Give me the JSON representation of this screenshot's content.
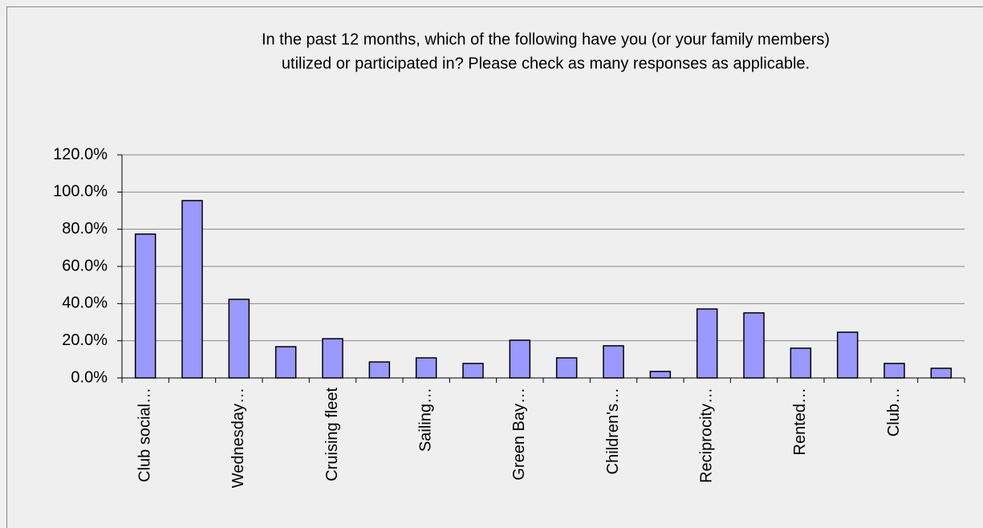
{
  "chart_data": {
    "type": "bar",
    "title": [
      "In the past 12 months, which of the following have you (or your family members)",
      "utilized or participated in? Please check as many responses as applicable."
    ],
    "categories": [
      "Club social…",
      null,
      "Wednesday…",
      null,
      "Cruising fleet",
      null,
      "Sailing…",
      null,
      "Green Bay…",
      null,
      "Children's…",
      null,
      "Reciprocity…",
      null,
      "Rented…",
      null,
      "Club…",
      null
    ],
    "values": [
      77.4,
      95.4,
      42.3,
      16.8,
      21.1,
      8.6,
      10.8,
      7.8,
      20.3,
      10.8,
      17.3,
      3.5,
      37.1,
      35.0,
      16.0,
      24.6,
      7.8,
      5.2
    ],
    "color": "#9999ff",
    "ylim": [
      0,
      120
    ],
    "yticks": [
      {
        "value": 0,
        "label": "0.0%"
      },
      {
        "value": 20,
        "label": "20.0%"
      },
      {
        "value": 40,
        "label": "40.0%"
      },
      {
        "value": 60,
        "label": "60.0%"
      },
      {
        "value": 80,
        "label": "80.0%"
      },
      {
        "value": 100,
        "label": "100.0%"
      },
      {
        "value": 120,
        "label": "120.0%"
      }
    ],
    "grid": true
  }
}
